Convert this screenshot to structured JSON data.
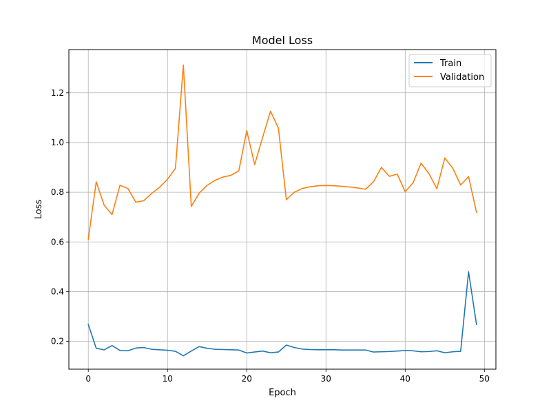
{
  "chart_data": {
    "type": "line",
    "title": "Model Loss",
    "xlabel": "Epoch",
    "ylabel": "Loss",
    "xlim": [
      -2.45,
      51.45
    ],
    "ylim": [
      0.088,
      1.374
    ],
    "xticks": [
      0,
      10,
      20,
      30,
      40,
      50
    ],
    "yticks": [
      0.2,
      0.4,
      0.6,
      0.8,
      1.0,
      1.2
    ],
    "xtick_labels": [
      "0",
      "10",
      "20",
      "30",
      "40",
      "50"
    ],
    "ytick_labels": [
      "0.2",
      "0.4",
      "0.6",
      "0.8",
      "1.0",
      "1.2"
    ],
    "grid": true,
    "legend_position": "top-right",
    "x": [
      0,
      1,
      2,
      3,
      4,
      5,
      6,
      7,
      8,
      9,
      10,
      11,
      12,
      13,
      14,
      15,
      16,
      17,
      18,
      19,
      20,
      21,
      22,
      23,
      24,
      25,
      26,
      27,
      28,
      29,
      30,
      31,
      32,
      33,
      34,
      35,
      36,
      37,
      38,
      39,
      40,
      41,
      42,
      43,
      44,
      45,
      46,
      47,
      48,
      49
    ],
    "series": [
      {
        "name": "Train",
        "color": "#1f77b4",
        "values": [
          0.268,
          0.172,
          0.166,
          0.183,
          0.163,
          0.162,
          0.173,
          0.175,
          0.168,
          0.166,
          0.164,
          0.16,
          0.142,
          0.161,
          0.179,
          0.172,
          0.168,
          0.167,
          0.166,
          0.165,
          0.153,
          0.157,
          0.161,
          0.154,
          0.157,
          0.185,
          0.175,
          0.169,
          0.167,
          0.166,
          0.166,
          0.166,
          0.165,
          0.165,
          0.165,
          0.165,
          0.157,
          0.158,
          0.159,
          0.161,
          0.163,
          0.162,
          0.158,
          0.159,
          0.162,
          0.154,
          0.158,
          0.16,
          0.48,
          0.268
        ]
      },
      {
        "name": "Validation",
        "color": "#ff7f0e",
        "values": [
          0.61,
          0.842,
          0.748,
          0.71,
          0.828,
          0.815,
          0.76,
          0.766,
          0.795,
          0.82,
          0.852,
          0.896,
          1.312,
          0.743,
          0.796,
          0.828,
          0.848,
          0.861,
          0.868,
          0.886,
          1.048,
          0.911,
          1.02,
          1.126,
          1.058,
          0.77,
          0.8,
          0.815,
          0.822,
          0.826,
          0.827,
          0.826,
          0.824,
          0.821,
          0.817,
          0.812,
          0.842,
          0.9,
          0.864,
          0.873,
          0.802,
          0.838,
          0.917,
          0.875,
          0.814,
          0.938,
          0.897,
          0.829,
          0.863,
          0.719
        ]
      }
    ]
  }
}
